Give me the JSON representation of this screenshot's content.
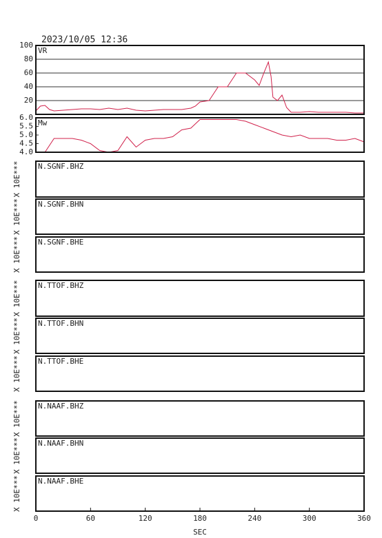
{
  "timestamp": "2023/10/05 12:36",
  "xaxis": {
    "label": "SEC",
    "xlim": [
      0,
      360
    ],
    "xticks": [
      0,
      60,
      120,
      180,
      240,
      300,
      360
    ]
  },
  "chart_data": [
    {
      "type": "line",
      "title": "VR",
      "color": "#d0204a",
      "grid": true,
      "ylim": [
        0,
        100
      ],
      "yticks": [
        20,
        40,
        60,
        80,
        100
      ],
      "x": [
        0,
        5,
        10,
        15,
        20,
        30,
        40,
        50,
        60,
        70,
        80,
        90,
        100,
        110,
        120,
        130,
        140,
        150,
        160,
        170,
        175,
        180,
        190,
        195,
        200,
        210,
        215,
        220,
        230,
        240,
        245,
        250,
        255,
        258,
        260,
        265,
        270,
        275,
        280,
        290,
        300,
        310,
        320,
        330,
        340,
        350,
        360
      ],
      "values": [
        5,
        12,
        13,
        7,
        5,
        6,
        7,
        8,
        8,
        7,
        9,
        7,
        9,
        6,
        5,
        6,
        7,
        7,
        7,
        9,
        12,
        18,
        20,
        30,
        40,
        40,
        50,
        60,
        60,
        50,
        42,
        60,
        76,
        55,
        25,
        20,
        28,
        10,
        3,
        3,
        4,
        3,
        3,
        3,
        3,
        2,
        2
      ]
    },
    {
      "type": "line",
      "title": "Mw",
      "color": "#d0204a",
      "grid": false,
      "ylim": [
        4.0,
        6.0
      ],
      "yticks": [
        {
          "value": 4,
          "label": "4.0"
        },
        4.5,
        {
          "value": 5,
          "label": "5.0"
        },
        5.5,
        {
          "value": 6,
          "label": "6.0"
        }
      ],
      "x": [
        0,
        10,
        20,
        30,
        40,
        50,
        60,
        70,
        80,
        90,
        100,
        110,
        120,
        130,
        140,
        150,
        160,
        170,
        180,
        190,
        200,
        210,
        220,
        230,
        240,
        250,
        260,
        270,
        280,
        290,
        300,
        310,
        320,
        330,
        340,
        350,
        360
      ],
      "values": [
        4.0,
        4.0,
        4.8,
        4.8,
        4.8,
        4.7,
        4.5,
        4.1,
        4.0,
        4.1,
        4.9,
        4.3,
        4.7,
        4.8,
        4.8,
        4.9,
        5.3,
        5.4,
        5.9,
        5.9,
        5.9,
        5.9,
        5.9,
        5.8,
        5.6,
        5.4,
        5.2,
        5.0,
        4.9,
        5.0,
        4.8,
        4.8,
        4.8,
        4.7,
        4.7,
        4.8,
        4.6
      ]
    },
    {
      "type": "waveform",
      "title": "N.SGNF.BHZ",
      "ylabel": "X 10E***"
    },
    {
      "type": "waveform",
      "title": "N.SGNF.BHN",
      "ylabel": "X 10E***"
    },
    {
      "type": "waveform",
      "title": "N.SGNF.BHE",
      "ylabel": "X 10E***"
    },
    {
      "type": "waveform",
      "title": "N.TTOF.BHZ",
      "ylabel": "X 10E***"
    },
    {
      "type": "waveform",
      "title": "N.TTOF.BHN",
      "ylabel": "X 10E***"
    },
    {
      "type": "waveform",
      "title": "N.TTOF.BHE",
      "ylabel": "X 10E***"
    },
    {
      "type": "waveform",
      "title": "N.NAAF.BHZ",
      "ylabel": "X 10E***"
    },
    {
      "type": "waveform",
      "title": "N.NAAF.BHN",
      "ylabel": "X 10E***"
    },
    {
      "type": "waveform",
      "title": "N.NAAF.BHE",
      "ylabel": "X 10E***"
    }
  ]
}
